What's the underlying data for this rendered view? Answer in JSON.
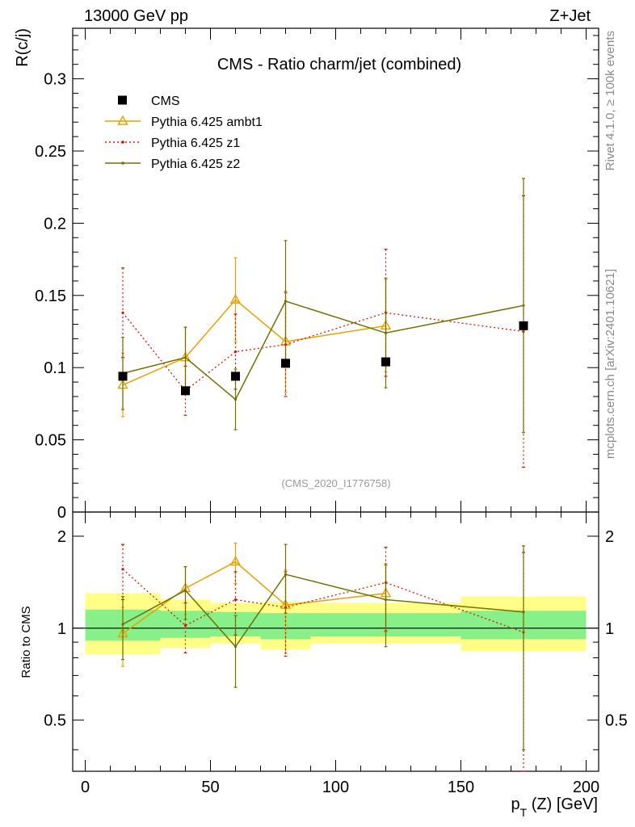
{
  "header": {
    "left": "13000 GeV pp",
    "right": "Z+Jet"
  },
  "side_labels": {
    "rivet": "Rivet 4.1.0, ≥ 100k events",
    "mcplots": "mcplots.cern.ch [arXiv:2401.10621]"
  },
  "colors": {
    "data": "#000000",
    "ambt1": "#e8a000",
    "z1": "#dd1100",
    "z2": "#6f7100",
    "band_inner": "#88f088",
    "band_outer": "#ffff88"
  },
  "chart_data": {
    "type": "scatter",
    "title": "CMS - Ratio charm/jet (combined)",
    "watermark": "(CMS_2020_I1776758)",
    "ylabel": "R(c/j)",
    "xlabel": "p_T (Z) [GeV]",
    "xlabel_main": "p",
    "xlabel_sub": "T",
    "xlabel_rest": " (Z) [GeV]",
    "ratio_ylabel": "Ratio to CMS",
    "xlim": [
      -5,
      205
    ],
    "ylim": [
      0,
      0.335
    ],
    "ratio_ylim": [
      0.34,
      2.4
    ],
    "x_ticks": [
      0,
      50,
      100,
      150,
      200
    ],
    "x_tick_labels": [
      "0",
      "50",
      "100",
      "150",
      "200"
    ],
    "y_ticks": [
      0,
      0.05,
      0.1,
      0.15,
      0.2,
      0.25,
      0.3
    ],
    "y_tick_labels": [
      "0",
      "0.05",
      "0.1",
      "0.15",
      "0.2",
      "0.25",
      "0.3"
    ],
    "ratio_ticks": [
      0.5,
      1,
      2
    ],
    "ratio_tick_labels": [
      "0.5",
      "1",
      "2"
    ],
    "legend": [
      {
        "key": "data",
        "label": "CMS"
      },
      {
        "key": "ambt1",
        "label": "Pythia 6.425 ambt1"
      },
      {
        "key": "z1",
        "label": "Pythia 6.425 z1"
      },
      {
        "key": "z2",
        "label": "Pythia 6.425 z2"
      }
    ],
    "data": {
      "name": "CMS",
      "bins": [
        [
          0,
          30
        ],
        [
          30,
          50
        ],
        [
          50,
          70
        ],
        [
          70,
          90
        ],
        [
          90,
          150
        ],
        [
          150,
          200
        ]
      ],
      "x": [
        15,
        40,
        60,
        80,
        120,
        175
      ],
      "y": [
        0.094,
        0.084,
        0.094,
        0.103,
        0.104,
        0.129
      ],
      "band_inner": [
        [
          0.91,
          1.15
        ],
        [
          0.93,
          1.14
        ],
        [
          0.94,
          1.13
        ],
        [
          0.92,
          1.12
        ],
        [
          0.94,
          1.12
        ],
        [
          0.92,
          1.14
        ]
      ],
      "band_outer": [
        [
          0.82,
          1.3
        ],
        [
          0.86,
          1.24
        ],
        [
          0.89,
          1.21
        ],
        [
          0.85,
          1.22
        ],
        [
          0.89,
          1.21
        ],
        [
          0.84,
          1.27
        ]
      ]
    },
    "series": [
      {
        "name": "Pythia 6.425 ambt1",
        "key": "ambt1",
        "style": "solid",
        "marker": "triangle",
        "x": [
          15,
          40,
          60,
          80,
          120
        ],
        "y": [
          0.088,
          0.107,
          0.147,
          0.118,
          0.129
        ],
        "err": [
          0.022,
          0.021,
          0.029,
          0.035,
          0.032
        ],
        "ratio": [
          0.96,
          1.35,
          1.65,
          1.19,
          1.3
        ],
        "ratio_err": [
          0.21,
          0.24,
          0.25,
          0.36,
          0.33
        ]
      },
      {
        "name": "Pythia 6.425 z1",
        "key": "z1",
        "style": "dotted",
        "marker": "dot",
        "x": [
          15,
          40,
          60,
          80,
          120,
          175
        ],
        "y": [
          0.138,
          0.084,
          0.111,
          0.116,
          0.138,
          0.125
        ],
        "err": [
          0.031,
          0.017,
          0.026,
          0.036,
          0.044,
          0.094
        ],
        "ratio": [
          1.56,
          1.02,
          1.24,
          1.17,
          1.41,
          0.97
        ],
        "ratio_err": [
          0.32,
          0.19,
          0.29,
          0.36,
          0.43,
          0.8
        ]
      },
      {
        "name": "Pythia 6.425 z2",
        "key": "z2",
        "style": "solid",
        "marker": "dot",
        "x": [
          15,
          40,
          60,
          80,
          120,
          175
        ],
        "y": [
          0.096,
          0.107,
          0.078,
          0.146,
          0.124,
          0.143
        ],
        "err": [
          0.025,
          0.021,
          0.021,
          0.042,
          0.038,
          0.088
        ],
        "ratio": [
          1.03,
          1.33,
          0.87,
          1.5,
          1.24,
          1.13
        ],
        "ratio_err": [
          0.24,
          0.26,
          0.23,
          0.38,
          0.37,
          0.73
        ]
      }
    ]
  }
}
